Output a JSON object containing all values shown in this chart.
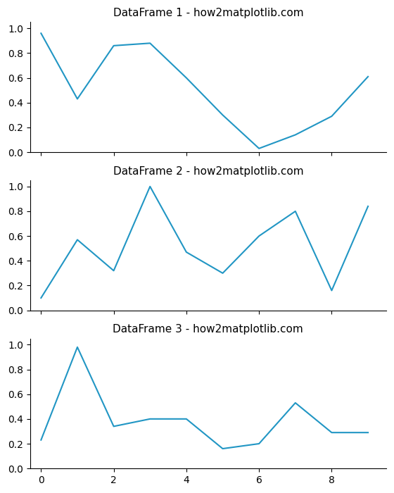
{
  "df1": {
    "x": [
      0,
      1,
      2,
      3,
      4,
      5,
      6,
      7,
      8,
      9
    ],
    "y": [
      0.96,
      0.43,
      0.86,
      0.88,
      0.6,
      0.3,
      0.03,
      0.14,
      0.29,
      0.61
    ]
  },
  "df2": {
    "x": [
      0,
      1,
      2,
      3,
      4,
      5,
      6,
      7,
      8,
      9
    ],
    "y": [
      0.1,
      0.57,
      0.32,
      1.0,
      0.47,
      0.3,
      0.6,
      0.8,
      0.16,
      0.84
    ]
  },
  "df3": {
    "x": [
      0,
      1,
      2,
      3,
      4,
      5,
      6,
      7,
      8,
      9
    ],
    "y": [
      0.23,
      0.98,
      0.34,
      0.4,
      0.4,
      0.16,
      0.2,
      0.53,
      0.29,
      0.29
    ]
  },
  "titles": [
    "DataFrame 1 - how2matplotlib.com",
    "DataFrame 2 - how2matplotlib.com",
    "DataFrame 3 - how2matplotlib.com"
  ],
  "line_color": "#2196c4",
  "background_color": "#ffffff",
  "ylim": [
    0.0,
    1.05
  ],
  "xlim": [
    -0.3,
    9.5
  ],
  "xticks": [
    0,
    2,
    4,
    6,
    8
  ],
  "yticks": [
    0.0,
    0.2,
    0.4,
    0.6,
    0.8,
    1.0
  ],
  "figsize": [
    5.6,
    7.0
  ],
  "dpi": 100,
  "title_fontsize": 11,
  "linewidth": 1.5
}
